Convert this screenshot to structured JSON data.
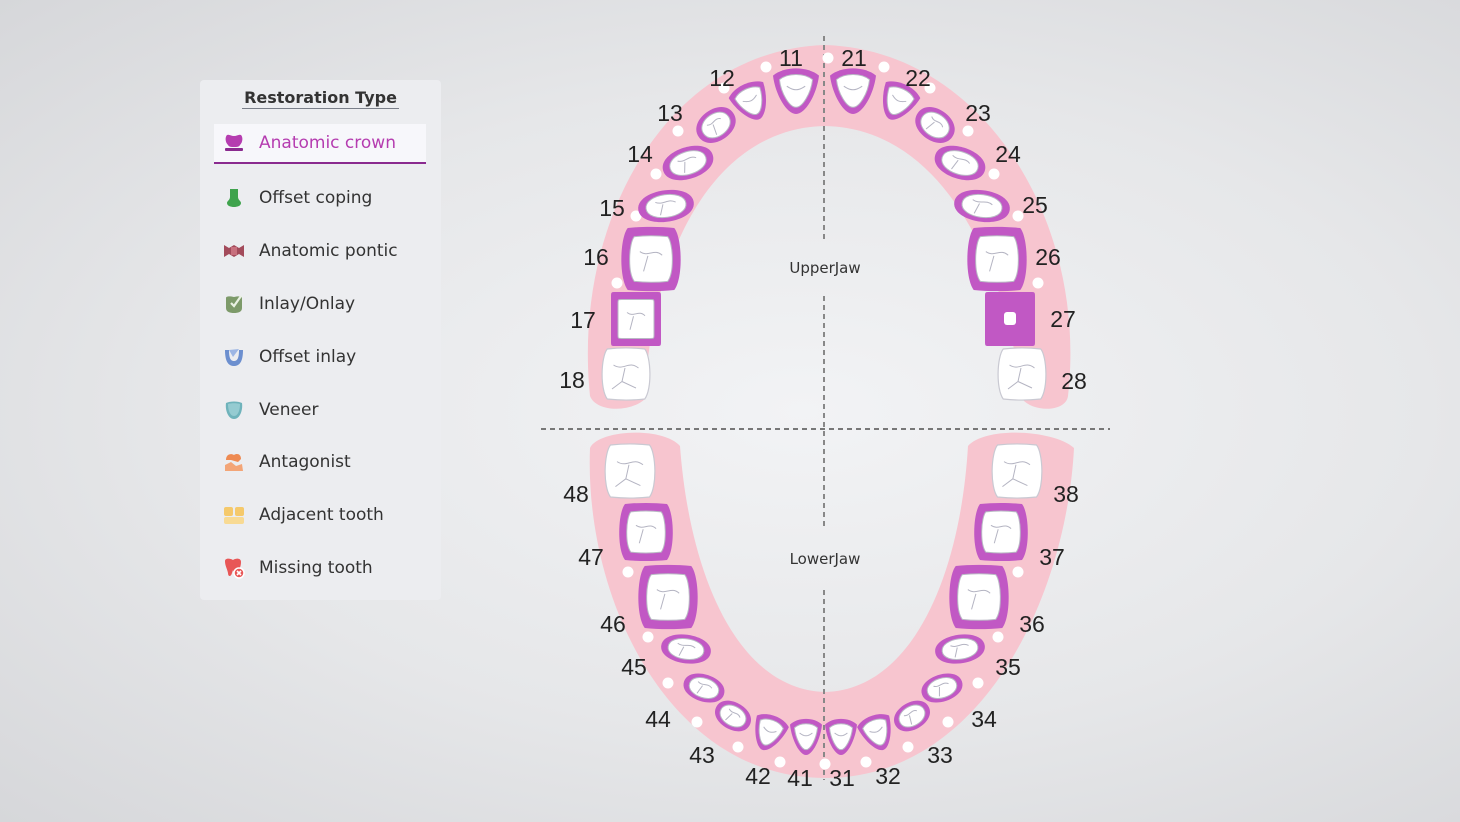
{
  "panel": {
    "title": "Restoration Type",
    "items": [
      {
        "label": "Anatomic crown",
        "icon": "anatomic-crown-icon",
        "color": "#b53cb0",
        "active": true
      },
      {
        "label": "Offset coping",
        "icon": "offset-coping-icon",
        "color": "#3fa34d",
        "active": false
      },
      {
        "label": "Anatomic pontic",
        "icon": "anatomic-pontic-icon",
        "color": "#a34b5b",
        "active": false
      },
      {
        "label": "Inlay/Onlay",
        "icon": "inlay-onlay-icon",
        "color": "#7d9a6a",
        "active": false
      },
      {
        "label": "Offset inlay",
        "icon": "offset-inlay-icon",
        "color": "#6c8fcf",
        "active": false
      },
      {
        "label": "Veneer",
        "icon": "veneer-icon",
        "color": "#6fb3bb",
        "active": false
      },
      {
        "label": "Antagonist",
        "icon": "antagonist-icon",
        "color": "#ee8a52",
        "active": false
      },
      {
        "label": "Adjacent tooth",
        "icon": "adjacent-tooth-icon",
        "color": "#f5c96b",
        "active": false
      },
      {
        "label": "Missing tooth",
        "icon": "missing-tooth-icon",
        "color": "#e85656",
        "active": false
      }
    ]
  },
  "chart": {
    "upper_label": "UpperJaw",
    "lower_label": "LowerJaw",
    "colors": {
      "gum": "#f7c5cf",
      "crown": "#c158c4",
      "tooth": "#ffffff"
    },
    "teeth": [
      {
        "id": "11",
        "status": "anatomic-crown"
      },
      {
        "id": "12",
        "status": "anatomic-crown"
      },
      {
        "id": "13",
        "status": "anatomic-crown"
      },
      {
        "id": "14",
        "status": "anatomic-crown"
      },
      {
        "id": "15",
        "status": "anatomic-crown"
      },
      {
        "id": "16",
        "status": "anatomic-crown"
      },
      {
        "id": "17",
        "status": "anatomic-crown"
      },
      {
        "id": "18",
        "status": "none"
      },
      {
        "id": "21",
        "status": "anatomic-crown"
      },
      {
        "id": "22",
        "status": "anatomic-crown"
      },
      {
        "id": "23",
        "status": "anatomic-crown"
      },
      {
        "id": "24",
        "status": "anatomic-crown"
      },
      {
        "id": "25",
        "status": "anatomic-crown"
      },
      {
        "id": "26",
        "status": "anatomic-crown"
      },
      {
        "id": "27",
        "status": "anatomic-crown"
      },
      {
        "id": "28",
        "status": "none"
      },
      {
        "id": "31",
        "status": "anatomic-crown"
      },
      {
        "id": "32",
        "status": "anatomic-crown"
      },
      {
        "id": "33",
        "status": "anatomic-crown"
      },
      {
        "id": "34",
        "status": "anatomic-crown"
      },
      {
        "id": "35",
        "status": "anatomic-crown"
      },
      {
        "id": "36",
        "status": "anatomic-crown"
      },
      {
        "id": "37",
        "status": "anatomic-crown"
      },
      {
        "id": "38",
        "status": "none"
      },
      {
        "id": "41",
        "status": "anatomic-crown"
      },
      {
        "id": "42",
        "status": "anatomic-crown"
      },
      {
        "id": "43",
        "status": "anatomic-crown"
      },
      {
        "id": "44",
        "status": "anatomic-crown"
      },
      {
        "id": "45",
        "status": "anatomic-crown"
      },
      {
        "id": "46",
        "status": "anatomic-crown"
      },
      {
        "id": "47",
        "status": "anatomic-crown"
      },
      {
        "id": "48",
        "status": "none"
      }
    ]
  }
}
